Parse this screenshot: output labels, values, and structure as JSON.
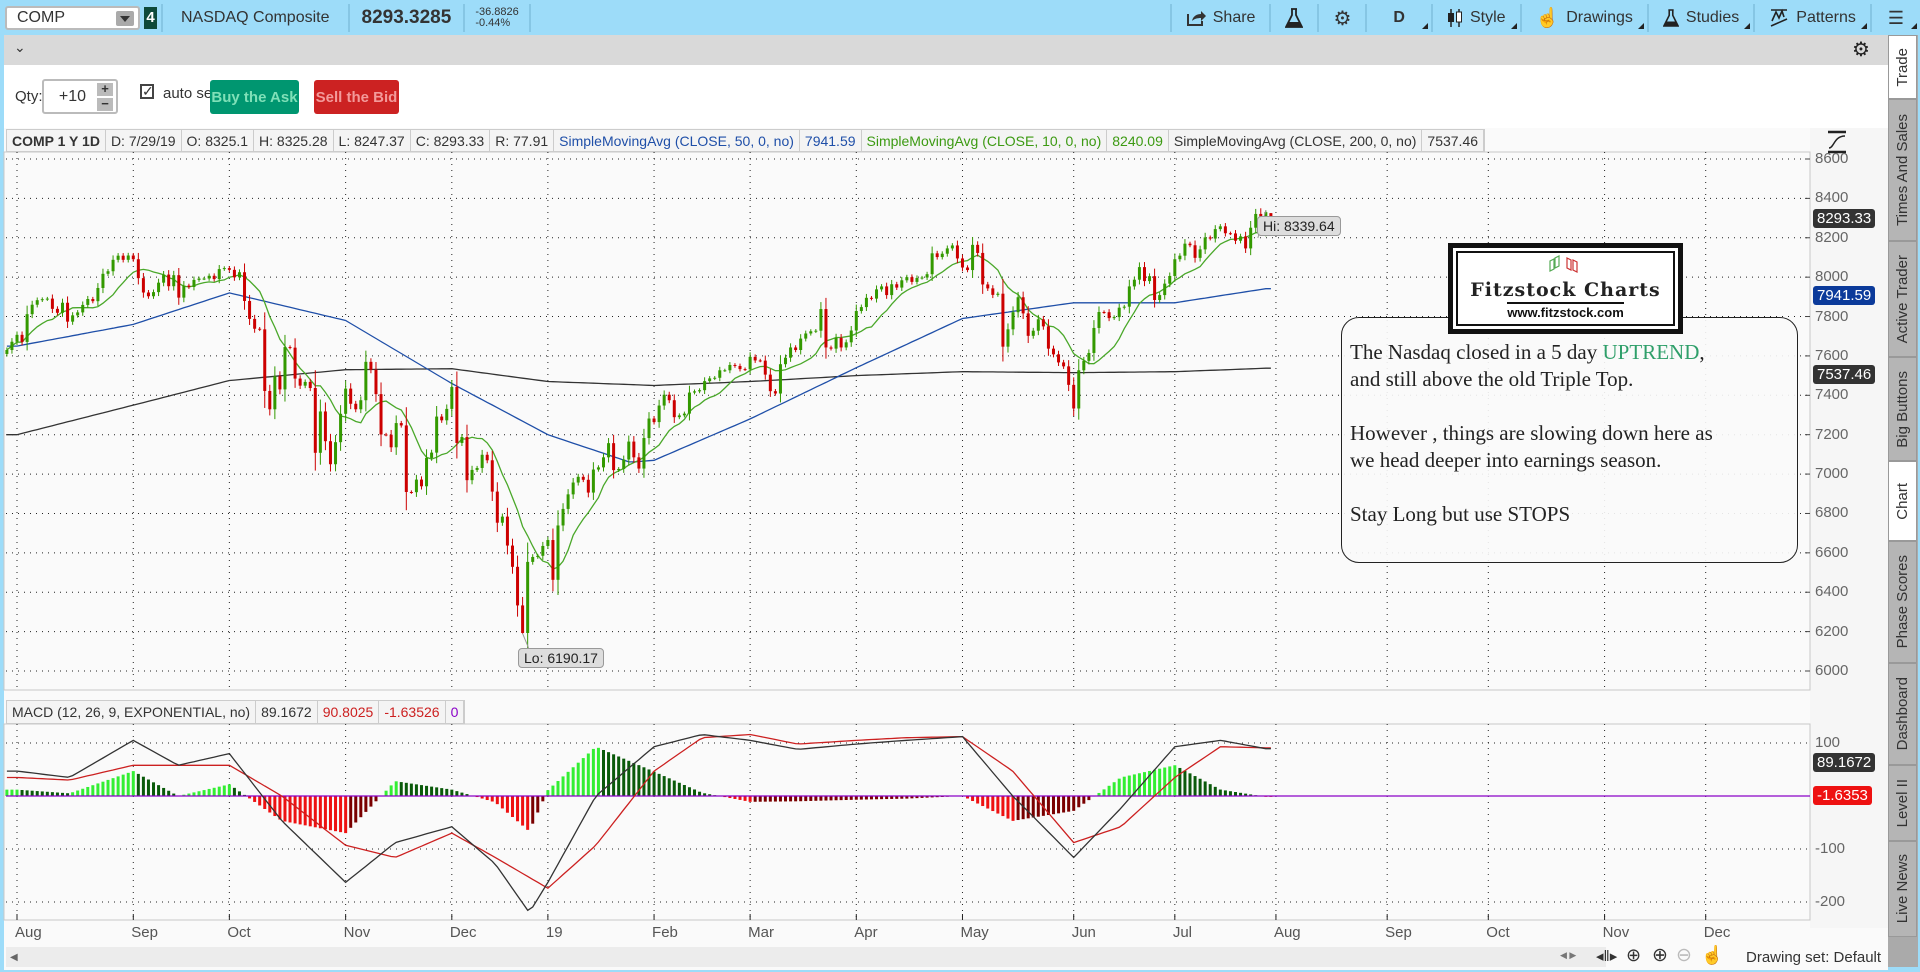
{
  "toolbar": {
    "symbol": "COMP",
    "link_group": "4",
    "description": "NASDAQ Composite",
    "last": "8293.3285",
    "change": "-36.8826",
    "change_pct": "-0.44%",
    "share_label": "Share",
    "aggregation_label": "D",
    "style_label": "Style",
    "drawings_label": "Drawings",
    "studies_label": "Studies",
    "patterns_label": "Patterns",
    "icons": [
      "share-icon",
      "flask-icon",
      "gear-icon",
      "candle-style-icon",
      "hand-icon",
      "studies-flask-icon",
      "patterns-icon",
      "menu-icon"
    ]
  },
  "trade": {
    "qty_label": "Qty:",
    "qty_value": "+10",
    "auto_send_label": "auto send",
    "auto_send_checked": true,
    "buy_label": "Buy the Ask",
    "sell_label": "Sell the Bid",
    "buy_color": "#009670",
    "sell_color": "#cc2222"
  },
  "chart_header": {
    "symbol": "COMP 1 Y 1D",
    "date": "D: 7/29/19",
    "open": "O: 8325.1",
    "high": "H: 8325.28",
    "low": "L: 8247.37",
    "close": "C: 8293.33",
    "range": "R: 77.91",
    "studies": [
      {
        "name": "SimpleMovingAvg (CLOSE, 50, 0, no)",
        "value": "7941.59",
        "color": "#1f4fa8"
      },
      {
        "name": "SimpleMovingAvg (CLOSE, 10, 0, no)",
        "value": "8240.09",
        "color": "#3c9a12"
      },
      {
        "name": "SimpleMovingAvg (CLOSE, 200, 0, no)",
        "value": "7537.46",
        "color": "#333333"
      }
    ]
  },
  "macd_header": {
    "name": "MACD (12, 26, 9, EXPONENTIAL, no)",
    "value": "89.1672",
    "avg": "90.8025",
    "diff": "-1.63526",
    "zero": "0"
  },
  "price_badges": {
    "last": "8293.33",
    "sma50": "7941.59",
    "sma200": "7537.46",
    "macd": "89.1672",
    "diff": "-1.6353"
  },
  "hi_label": "Hi: 8339.64",
  "lo_label": "Lo: 6190.17",
  "logo": {
    "title": "Fitzstock Charts",
    "url": "www.fitzstock.com"
  },
  "annotation": {
    "line1_a": "The Nasdaq closed in a 5 day ",
    "line1_b": "UPTREND",
    "line1_c": ",",
    "line2": "and still above the old Triple Top.",
    "line3": "However , things are slowing down here as",
    "line4": "we head deeper into earnings season.",
    "line5": "Stay Long but use STOPS",
    "highlight_color": "#2f9f6a"
  },
  "side_tabs": [
    {
      "label": "Trade",
      "active": true
    },
    {
      "label": "Times And Sales"
    },
    {
      "label": "Active Trader"
    },
    {
      "label": "Big Buttons"
    },
    {
      "label": "Chart",
      "active": true
    },
    {
      "label": "Phase Scores"
    },
    {
      "label": "Dashboard"
    },
    {
      "label": "Level II"
    },
    {
      "label": "Live News"
    }
  ],
  "bottom": {
    "drawing_set": "Drawing set: Default"
  },
  "chart_data": {
    "type": "candlestick",
    "symbol": "COMP",
    "period": "1 Y",
    "interval": "1D",
    "ylim": [
      6000,
      8600
    ],
    "y_ticks": [
      8600,
      8400,
      8200,
      8000,
      7800,
      7600,
      7400,
      7200,
      7000,
      6800,
      6600,
      6400,
      6200,
      6000
    ],
    "x_tick_labels": [
      "Aug",
      "Sep",
      "Oct",
      "Nov",
      "Dec",
      "19",
      "Feb",
      "Mar",
      "Apr",
      "May",
      "Jun",
      "Jul",
      "Aug",
      "Sep",
      "Oct",
      "Nov",
      "Dec"
    ],
    "grid": true,
    "up_color": "#339900",
    "down_color": "#cc0000",
    "high": 8339.64,
    "low": 6190.17,
    "last_bar": {
      "date": "7/29/19",
      "open": 8325.1,
      "high": 8325.28,
      "low": 8247.37,
      "close": 8293.33
    },
    "closes_by_month": [
      {
        "month": "2018-07",
        "closes": [
          7630,
          7672
        ]
      },
      {
        "month": "2018-08",
        "closes": [
          7707,
          7671,
          7812,
          7860,
          7883,
          7888,
          7891,
          7839,
          7819,
          7870,
          7774,
          7806,
          7821,
          7859,
          7889,
          7878,
          7945,
          8017,
          8030,
          8088,
          8109,
          8088,
          8110
        ]
      },
      {
        "month": "2018-09",
        "closes": [
          8091,
          7995,
          7922,
          7903,
          7924,
          7972,
          8013,
          7954,
          8010,
          7896,
          7957,
          7950,
          7986,
          7993,
          7993,
          8007,
          7990,
          8041,
          8046
        ]
      },
      {
        "month": "2018-10",
        "closes": [
          8037,
          7999,
          8025,
          7879,
          7788,
          7738,
          7735,
          7422,
          7329,
          7497,
          7430,
          7645,
          7642,
          7485,
          7449,
          7468,
          7437,
          7108,
          7318,
          7167,
          7050,
          7162,
          7306
        ]
      },
      {
        "month": "2018-11",
        "closes": [
          7434,
          7357,
          7329,
          7375,
          7570,
          7530,
          7406,
          7201,
          7200,
          7136,
          7259,
          7247,
          6909,
          6908,
          6972,
          6938,
          7082,
          7109,
          7292,
          7273,
          7331
        ]
      },
      {
        "month": "2018-12",
        "closes": [
          7442,
          7158,
          7188,
          6969,
          7021,
          7031,
          7098,
          7070,
          6911,
          6753,
          6784,
          6637,
          6529,
          6333,
          6193,
          6554,
          6579,
          6585,
          6635
        ]
      },
      {
        "month": "2019-01",
        "closes": [
          6665,
          6463,
          6739,
          6823,
          6897,
          6957,
          6986,
          6971,
          6906,
          7023,
          7034,
          7085,
          7157,
          7020,
          7026,
          7074,
          7165,
          7085,
          7028,
          7183,
          7282
        ]
      },
      {
        "month": "2019-02",
        "closes": [
          7264,
          7348,
          7403,
          7375,
          7289,
          7298,
          7307,
          7414,
          7420,
          7426,
          7472,
          7486,
          7489,
          7527,
          7527,
          7554,
          7549,
          7533,
          7532
        ]
      },
      {
        "month": "2019-03",
        "closes": [
          7595,
          7577,
          7576,
          7505,
          7421,
          7409,
          7558,
          7591,
          7643,
          7630,
          7688,
          7714,
          7725,
          7728,
          7838,
          7643,
          7637,
          7691,
          7643,
          7669,
          7729
        ]
      },
      {
        "month": "2019-04",
        "closes": [
          7828,
          7848,
          7895,
          7891,
          7938,
          7953,
          7909,
          7964,
          7947,
          7984,
          8000,
          7976,
          7996,
          7998,
          8015,
          8121,
          8102,
          8119,
          8146,
          8161,
          8095
        ]
      },
      {
        "month": "2019-05",
        "closes": [
          8049,
          8036,
          8164,
          8123,
          7963,
          7943,
          7910,
          7916,
          7647,
          7735,
          7822,
          7898,
          7816,
          7702,
          7728,
          7786,
          7750,
          7637,
          7608,
          7567,
          7547,
          7453
        ]
      },
      {
        "month": "2019-06",
        "closes": [
          7333,
          7527,
          7575,
          7615,
          7742,
          7823,
          7822,
          7792,
          7797,
          7845,
          7850,
          7953,
          7987,
          8051,
          7980,
          8005,
          7884,
          7909,
          7967,
          8006
        ]
      },
      {
        "month": "2019-07",
        "closes": [
          8091,
          8109,
          8170,
          8162,
          8098,
          8141,
          8202,
          8196,
          8244,
          8258,
          8223,
          8222,
          8185,
          8207,
          8146,
          8251,
          8321,
          8238,
          8330,
          8293.33
        ]
      }
    ],
    "sma50": [
      [
        "2018-08-01",
        7650
      ],
      [
        "2018-09-01",
        7760
      ],
      [
        "2018-10-01",
        7920
      ],
      [
        "2018-11-01",
        7780
      ],
      [
        "2018-12-01",
        7460
      ],
      [
        "2019-01-01",
        7200
      ],
      [
        "2019-01-25",
        7060
      ],
      [
        "2019-02-01",
        7070
      ],
      [
        "2019-03-01",
        7280
      ],
      [
        "2019-04-01",
        7540
      ],
      [
        "2019-05-01",
        7790
      ],
      [
        "2019-06-01",
        7870
      ],
      [
        "2019-07-01",
        7870
      ],
      [
        "2019-07-29",
        7941.59
      ]
    ],
    "sma200": [
      [
        "2018-08-01",
        7200
      ],
      [
        "2018-09-01",
        7350
      ],
      [
        "2018-10-01",
        7475
      ],
      [
        "2018-11-01",
        7530
      ],
      [
        "2018-12-01",
        7535
      ],
      [
        "2019-01-01",
        7470
      ],
      [
        "2019-02-01",
        7450
      ],
      [
        "2019-03-01",
        7470
      ],
      [
        "2019-04-01",
        7500
      ],
      [
        "2019-05-01",
        7520
      ],
      [
        "2019-06-01",
        7515
      ],
      [
        "2019-07-01",
        7520
      ],
      [
        "2019-07-29",
        7537.46
      ]
    ],
    "macd": {
      "ylim": [
        -230,
        150
      ],
      "y_ticks": [
        100,
        -100,
        -200
      ],
      "value": [
        [
          "2018-08-01",
          47
        ],
        [
          "2018-08-15",
          35
        ],
        [
          "2018-09-01",
          105
        ],
        [
          "2018-09-15",
          58
        ],
        [
          "2018-10-01",
          80
        ],
        [
          "2018-10-15",
          -47
        ],
        [
          "2018-11-01",
          -163
        ],
        [
          "2018-11-15",
          -88
        ],
        [
          "2018-12-01",
          -58
        ],
        [
          "2018-12-15",
          -128
        ],
        [
          "2018-12-26",
          -220
        ],
        [
          "2019-01-01",
          -163
        ],
        [
          "2019-01-15",
          0
        ],
        [
          "2019-02-01",
          93
        ],
        [
          "2019-02-15",
          116
        ],
        [
          "2019-03-01",
          105
        ],
        [
          "2019-03-15",
          88
        ],
        [
          "2019-04-01",
          98
        ],
        [
          "2019-04-15",
          105
        ],
        [
          "2019-05-01",
          112
        ],
        [
          "2019-05-15",
          0
        ],
        [
          "2019-06-01",
          -116
        ],
        [
          "2019-06-15",
          -23
        ],
        [
          "2019-07-01",
          93
        ],
        [
          "2019-07-15",
          105
        ],
        [
          "2019-07-29",
          89.1672
        ]
      ],
      "avg": [
        [
          "2018-08-01",
          35
        ],
        [
          "2018-08-15",
          30
        ],
        [
          "2018-09-01",
          58
        ],
        [
          "2018-09-15",
          58
        ],
        [
          "2018-10-01",
          58
        ],
        [
          "2018-10-15",
          0
        ],
        [
          "2018-11-01",
          -93
        ],
        [
          "2018-11-15",
          -116
        ],
        [
          "2018-12-01",
          -70
        ],
        [
          "2018-12-15",
          -116
        ],
        [
          "2019-01-01",
          -174
        ],
        [
          "2019-01-15",
          -93
        ],
        [
          "2019-02-01",
          47
        ],
        [
          "2019-02-15",
          110
        ],
        [
          "2019-03-01",
          116
        ],
        [
          "2019-03-15",
          98
        ],
        [
          "2019-04-01",
          105
        ],
        [
          "2019-04-15",
          110
        ],
        [
          "2019-05-01",
          112
        ],
        [
          "2019-05-15",
          47
        ],
        [
          "2019-06-01",
          -88
        ],
        [
          "2019-06-15",
          -58
        ],
        [
          "2019-07-01",
          35
        ],
        [
          "2019-07-15",
          93
        ],
        [
          "2019-07-29",
          90.8025
        ]
      ],
      "value_color": "#333333",
      "avg_color": "#cc2020",
      "zero_color": "#8a00c8"
    }
  }
}
